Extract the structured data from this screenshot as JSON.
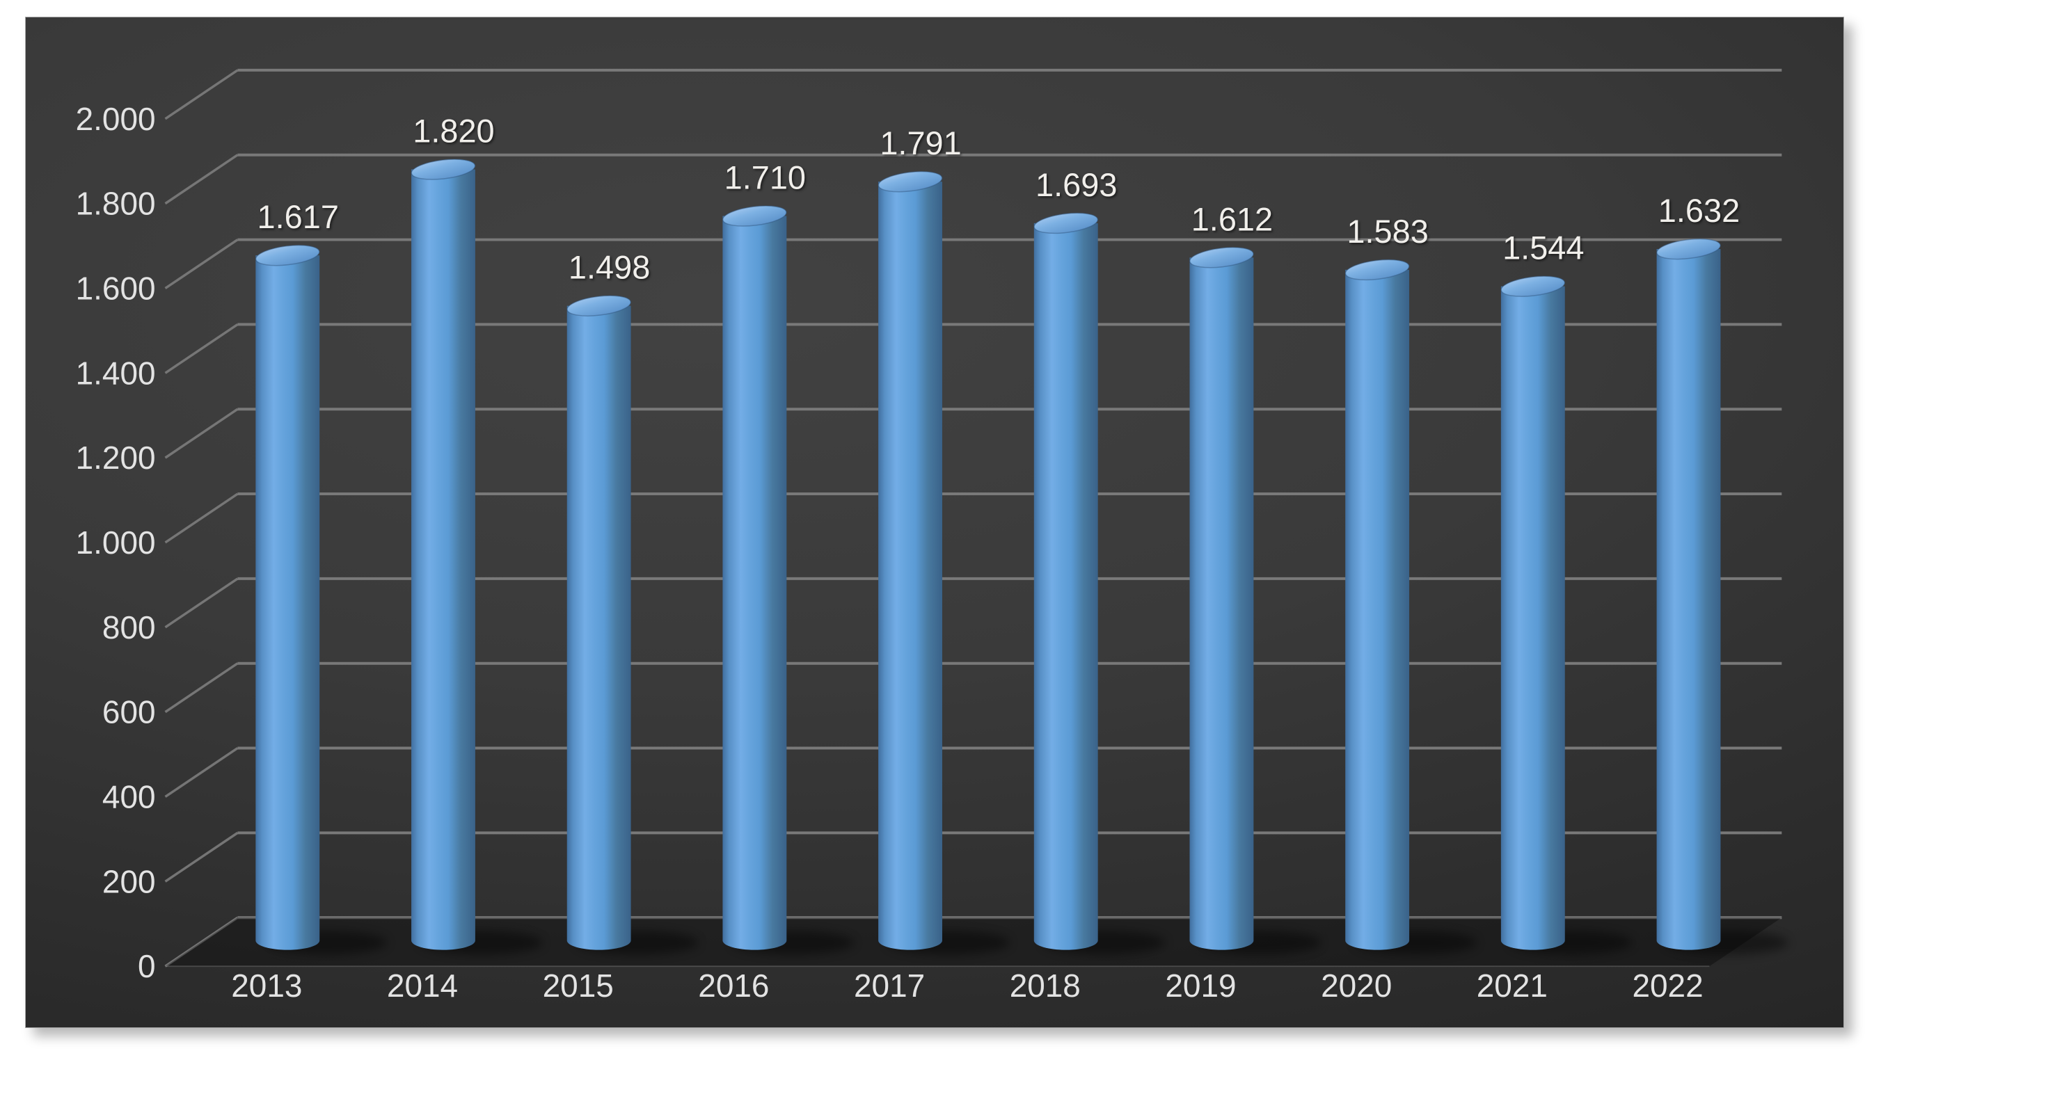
{
  "chart_data": {
    "type": "bar",
    "subtype": "cylinder-3d",
    "categories": [
      "2013",
      "2014",
      "2015",
      "2016",
      "2017",
      "2018",
      "2019",
      "2020",
      "2021",
      "2022"
    ],
    "values": [
      1617,
      1820,
      1498,
      1710,
      1791,
      1693,
      1612,
      1583,
      1544,
      1632
    ],
    "value_labels": [
      "1.617",
      "1.820",
      "1.498",
      "1.710",
      "1.791",
      "1.693",
      "1.612",
      "1.583",
      "1.544",
      "1.632"
    ],
    "y_axis": {
      "min": 0,
      "max": 2000,
      "step": 200,
      "tick_labels": [
        "2.000",
        "1.800",
        "1.600",
        "1.400",
        "1.200",
        "1.000",
        "800",
        "600",
        "400",
        "200",
        "0"
      ],
      "thousands_separator": "."
    },
    "grid": true,
    "legend": false,
    "colors": {
      "bar_fill": "#5b9bd5",
      "bar_highlight": "#73ade6",
      "bar_dark_side": "#3a6289",
      "bar_top_cap": "#7db1e3",
      "wall_background": "#383838",
      "gridline": "#7d7d7d",
      "axis_text": "#e3e3e3",
      "value_text": "#f1efeb",
      "panel_border": "#a8a8a8",
      "page_background": "#ffffff"
    }
  }
}
